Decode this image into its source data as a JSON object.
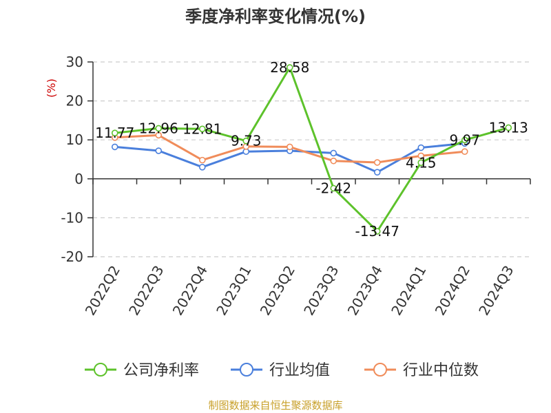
{
  "chart_data": {
    "type": "line",
    "title": "季度净利率变化情况(%)",
    "ylabel": "(%)",
    "xlabel": "",
    "categories": [
      "2022Q2",
      "2022Q3",
      "2022Q4",
      "2023Q1",
      "2023Q2",
      "2023Q3",
      "2023Q4",
      "2024Q1",
      "2024Q2",
      "2024Q3"
    ],
    "ylim": [
      -20,
      30
    ],
    "yticks": [
      -20,
      -10,
      0,
      10,
      20,
      30
    ],
    "grid": true,
    "legend_position": "bottom",
    "series": [
      {
        "name": "公司净利率",
        "color": "#5dc22b",
        "values": [
          11.77,
          12.96,
          12.81,
          9.73,
          28.58,
          -2.42,
          -13.47,
          4.15,
          9.97,
          13.13
        ],
        "labels": [
          "11.77",
          "12.96",
          "12.81",
          "9.73",
          "28.58",
          "-2.42",
          "-13.47",
          "4.15",
          "9.97",
          "13.13"
        ]
      },
      {
        "name": "行业均值",
        "color": "#4a7fdc",
        "values": [
          8.2,
          7.2,
          3.0,
          7.0,
          7.2,
          6.6,
          1.7,
          8.0,
          9.1,
          null
        ]
      },
      {
        "name": "行业中位数",
        "color": "#f08c5a",
        "values": [
          10.6,
          11.2,
          4.8,
          8.3,
          8.2,
          4.6,
          4.2,
          5.9,
          7.0,
          null
        ]
      }
    ]
  },
  "source": "制图数据来自恒生聚源数据库"
}
